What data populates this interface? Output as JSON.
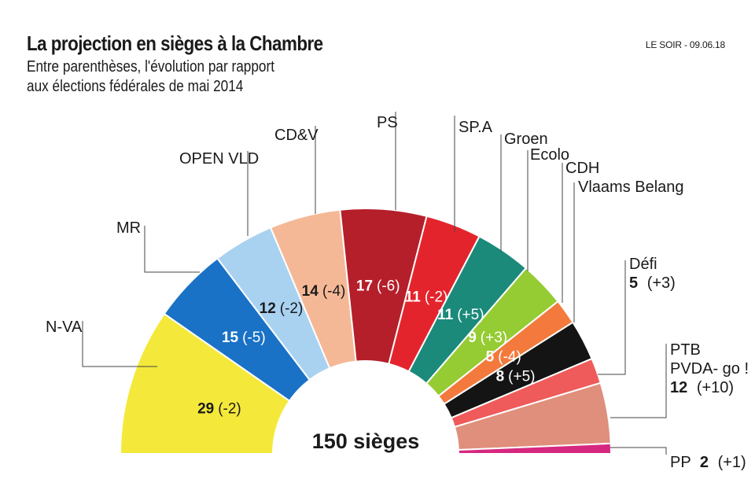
{
  "title": "La projection en sièges à la Chambre",
  "subtitle_line1": "Entre parenthèses, l'évolution par rapport",
  "subtitle_line2": "aux élections fédérales de mai 2014",
  "source": "LE SOIR - 09.06.18",
  "chart_data": {
    "type": "pie",
    "subtype": "parliament half-donut",
    "total_label": "150 sièges",
    "total": 150,
    "series": [
      {
        "party": "N-VA",
        "seats": 29,
        "change": "(-2)",
        "color": "#f4e93b",
        "inside_label": true
      },
      {
        "party": "MR",
        "seats": 15,
        "change": "(-5)",
        "color": "#1a72c6",
        "inside_label": true,
        "label_color": "#ffffff"
      },
      {
        "party": "OPEN VLD",
        "seats": 12,
        "change": "(-2)",
        "color": "#a9d2f1",
        "inside_label": true
      },
      {
        "party": "CD&V",
        "seats": 14,
        "change": "(-4)",
        "color": "#f5b896",
        "inside_label": true
      },
      {
        "party": "PS",
        "seats": 17,
        "change": "(-6)",
        "color": "#b51f2a",
        "inside_label": true,
        "label_color": "#ffffff"
      },
      {
        "party": "SP.A",
        "seats": 11,
        "change": "(-2)",
        "color": "#e4242c",
        "inside_label": true,
        "label_color": "#ffffff"
      },
      {
        "party": "Groen",
        "seats": 11,
        "change": "(+5)",
        "color": "#1b8a7b",
        "inside_label": true,
        "label_color": "#ffffff"
      },
      {
        "party": "Ecolo",
        "seats": 9,
        "change": "(+3)",
        "color": "#96cc33",
        "inside_label": true,
        "label_color": "#ffffff"
      },
      {
        "party": "CDH",
        "seats": 5,
        "change": "(-4)",
        "color": "#f37a3c",
        "inside_label": true,
        "label_color": "#ffffff"
      },
      {
        "party": "Vlaams Belang",
        "seats": 8,
        "change": "(+5)",
        "color": "#141414",
        "inside_label": true,
        "label_color": "#ffffff"
      },
      {
        "party": "Défi",
        "seats": 5,
        "change": "(+3)",
        "color": "#ef5a5a",
        "inside_label": false
      },
      {
        "party": "PTB PVDA- go !",
        "seats": 12,
        "change": "(+10)",
        "color": "#df8f7b",
        "inside_label": false
      },
      {
        "party": "PP",
        "seats": 2,
        "change": "(+1)",
        "color": "#d6287f",
        "inside_label": false
      }
    ]
  },
  "outside_labels": {
    "nva": "N-VA",
    "mr": "MR",
    "openvld": "OPEN VLD",
    "cdv": "CD&V",
    "ps": "PS",
    "spa": "SP.A",
    "groen": "Groen",
    "ecolo": "Ecolo",
    "cdh": "CDH",
    "vb": "Vlaams Belang",
    "defi_name": "Défi",
    "defi_seats": "5",
    "defi_change": "(+3)",
    "ptb_name1": "PTB",
    "ptb_name2": "PVDA- go !",
    "ptb_seats": "12",
    "ptb_change": "(+10)",
    "pp_name": "PP",
    "pp_seats": "2",
    "pp_change": "(+1)"
  }
}
